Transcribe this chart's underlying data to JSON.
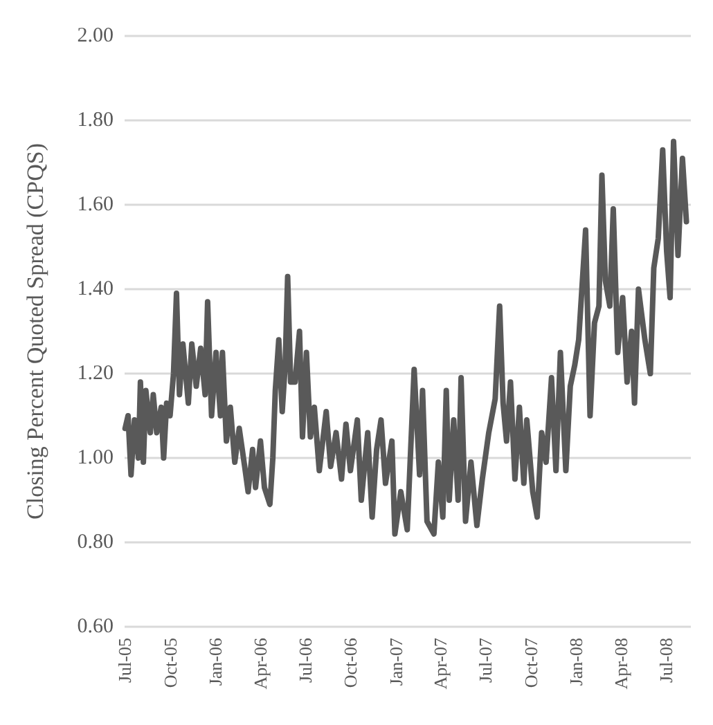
{
  "chart_data": {
    "type": "line",
    "ylabel": "Closing Percent Quoted Spread (CPQS)",
    "x": [
      "2005-07-02",
      "2005-07-08",
      "2005-07-14",
      "2005-07-21",
      "2005-07-29",
      "2005-08-02",
      "2005-08-08",
      "2005-08-13",
      "2005-08-22",
      "2005-08-28",
      "2005-09-04",
      "2005-09-13",
      "2005-09-18",
      "2005-09-24",
      "2005-10-01",
      "2005-10-08",
      "2005-10-14",
      "2005-10-20",
      "2005-10-27",
      "2005-11-07",
      "2005-11-14",
      "2005-11-23",
      "2005-12-02",
      "2005-12-11",
      "2005-12-16",
      "2005-12-24",
      "2006-01-02",
      "2006-01-11",
      "2006-01-15",
      "2006-01-23",
      "2006-01-31",
      "2006-02-09",
      "2006-02-18",
      "2006-03-01",
      "2006-03-08",
      "2006-03-17",
      "2006-03-23",
      "2006-04-02",
      "2006-04-10",
      "2006-04-21",
      "2006-04-27",
      "2006-05-02",
      "2006-05-09",
      "2006-05-16",
      "2006-05-22",
      "2006-05-27",
      "2006-06-02",
      "2006-06-11",
      "2006-06-20",
      "2006-06-26",
      "2006-07-04",
      "2006-07-12",
      "2006-07-20",
      "2006-07-30",
      "2006-08-13",
      "2006-08-22",
      "2006-09-02",
      "2006-09-13",
      "2006-09-22",
      "2006-10-01",
      "2006-10-15",
      "2006-10-23",
      "2006-11-05",
      "2006-11-14",
      "2006-11-23",
      "2006-12-02",
      "2006-12-11",
      "2006-12-24",
      "2006-12-30",
      "2007-01-11",
      "2007-01-24",
      "2007-02-07",
      "2007-02-18",
      "2007-02-24",
      "2007-03-05",
      "2007-03-19",
      "2007-03-28",
      "2007-04-06",
      "2007-04-13",
      "2007-04-19",
      "2007-04-28",
      "2007-05-07",
      "2007-05-13",
      "2007-05-22",
      "2007-06-02",
      "2007-06-14",
      "2007-06-25",
      "2007-07-08",
      "2007-07-21",
      "2007-07-30",
      "2007-08-06",
      "2007-08-13",
      "2007-08-21",
      "2007-08-30",
      "2007-09-08",
      "2007-09-17",
      "2007-09-23",
      "2007-10-05",
      "2007-10-14",
      "2007-10-23",
      "2007-11-01",
      "2007-11-12",
      "2007-11-21",
      "2007-11-30",
      "2007-12-11",
      "2007-12-20",
      "2007-12-29",
      "2008-01-06",
      "2008-01-20",
      "2008-01-29",
      "2008-02-07",
      "2008-02-16",
      "2008-02-22",
      "2008-02-29",
      "2008-03-09",
      "2008-03-16",
      "2008-03-25",
      "2008-04-04",
      "2008-04-13",
      "2008-04-22",
      "2008-04-28",
      "2008-05-06",
      "2008-05-19",
      "2008-05-30",
      "2008-06-06",
      "2008-06-15",
      "2008-06-24",
      "2008-07-02",
      "2008-07-09",
      "2008-07-16",
      "2008-07-25",
      "2008-08-03",
      "2008-08-11"
    ],
    "series": [
      {
        "color": "#595959",
        "values": [
          1.07,
          1.1,
          0.96,
          1.09,
          1.0,
          1.18,
          0.99,
          1.16,
          1.06,
          1.15,
          1.06,
          1.12,
          1.0,
          1.13,
          1.1,
          1.2,
          1.39,
          1.15,
          1.27,
          1.13,
          1.27,
          1.17,
          1.26,
          1.15,
          1.37,
          1.1,
          1.25,
          1.1,
          1.25,
          1.04,
          1.12,
          0.99,
          1.07,
          0.98,
          0.92,
          1.02,
          0.93,
          1.04,
          0.93,
          0.89,
          1.0,
          1.16,
          1.28,
          1.11,
          1.22,
          1.43,
          1.18,
          1.18,
          1.3,
          1.05,
          1.25,
          1.05,
          1.12,
          0.97,
          1.11,
          0.98,
          1.06,
          0.95,
          1.08,
          0.97,
          1.09,
          0.9,
          1.06,
          0.86,
          1.02,
          1.09,
          0.94,
          1.04,
          0.82,
          0.92,
          0.83,
          1.21,
          0.96,
          1.16,
          0.85,
          0.82,
          0.99,
          0.86,
          1.16,
          0.9,
          1.09,
          0.9,
          1.19,
          0.85,
          0.99,
          0.84,
          0.95,
          1.06,
          1.14,
          1.36,
          1.13,
          1.04,
          1.18,
          0.95,
          1.12,
          0.94,
          1.09,
          0.92,
          0.86,
          1.06,
          0.99,
          1.19,
          0.97,
          1.25,
          0.97,
          1.17,
          1.22,
          1.28,
          1.54,
          1.1,
          1.32,
          1.36,
          1.67,
          1.42,
          1.36,
          1.59,
          1.25,
          1.38,
          1.18,
          1.3,
          1.13,
          1.4,
          1.28,
          1.2,
          1.45,
          1.52,
          1.73,
          1.49,
          1.38,
          1.75,
          1.48,
          1.71,
          1.56
        ]
      }
    ],
    "xlim": [
      "2005-07-01",
      "2008-08-20"
    ],
    "xticks": [
      {
        "value": "2005-07-01",
        "label": "Jul-05"
      },
      {
        "value": "2005-10-01",
        "label": "Oct-05"
      },
      {
        "value": "2006-01-01",
        "label": "Jan-06"
      },
      {
        "value": "2006-04-01",
        "label": "Apr-06"
      },
      {
        "value": "2006-07-01",
        "label": "Jul-06"
      },
      {
        "value": "2006-10-01",
        "label": "Oct-06"
      },
      {
        "value": "2007-01-01",
        "label": "Jan-07"
      },
      {
        "value": "2007-04-01",
        "label": "Apr-07"
      },
      {
        "value": "2007-07-01",
        "label": "Jul-07"
      },
      {
        "value": "2007-10-01",
        "label": "Oct-07"
      },
      {
        "value": "2008-01-01",
        "label": "Jan-08"
      },
      {
        "value": "2008-04-01",
        "label": "Apr-08"
      },
      {
        "value": "2008-07-01",
        "label": "Jul-08"
      }
    ],
    "ylim": [
      0.6,
      2.0
    ],
    "yticks": [
      {
        "value": 0.6,
        "label": "0.60"
      },
      {
        "value": 0.8,
        "label": "0.80"
      },
      {
        "value": 1.0,
        "label": "1.00"
      },
      {
        "value": 1.2,
        "label": "1.20"
      },
      {
        "value": 1.4,
        "label": "1.40"
      },
      {
        "value": 1.6,
        "label": "1.60"
      },
      {
        "value": 1.8,
        "label": "1.80"
      },
      {
        "value": 2.0,
        "label": "2.00"
      }
    ],
    "grid": "y",
    "marker": "none",
    "line_style": "solid"
  }
}
